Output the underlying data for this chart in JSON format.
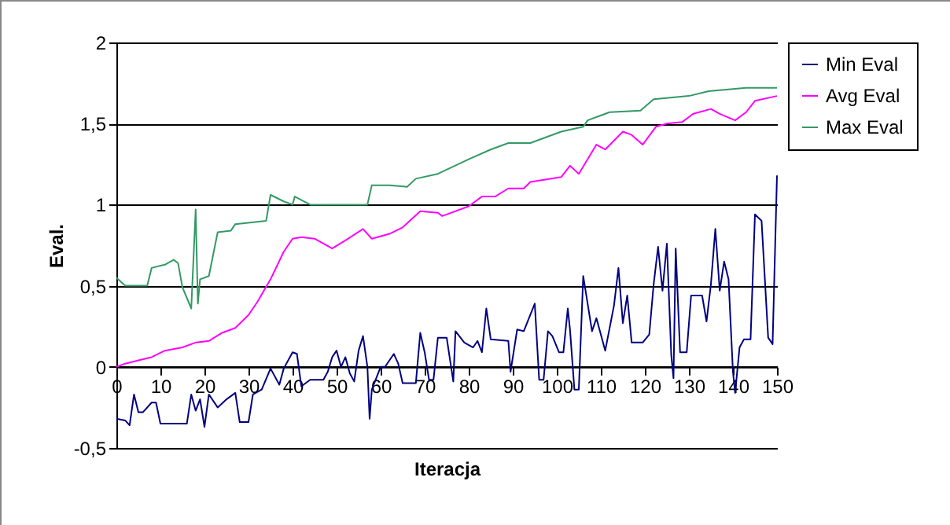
{
  "chart_data": {
    "type": "line",
    "xlabel": "Iteracja",
    "ylabel": "Eval.",
    "xlim": [
      0,
      150
    ],
    "xticks": [
      0,
      10,
      20,
      30,
      40,
      50,
      60,
      70,
      80,
      90,
      100,
      110,
      120,
      130,
      140,
      150
    ],
    "ylim": [
      -0.5,
      2
    ],
    "yticks": [
      {
        "value": -0.5,
        "label": "-0,5"
      },
      0,
      {
        "value": 0.5,
        "label": "0,5"
      },
      1,
      {
        "value": 1.5,
        "label": "1,5"
      },
      2
    ],
    "grid": "y",
    "legend": "right",
    "series": [
      {
        "name": "Min Eval",
        "color": "#000080",
        "x": [
          0,
          2,
          3,
          4,
          5,
          6,
          8,
          9,
          10,
          16,
          17,
          18,
          19,
          20,
          21,
          23,
          25,
          27,
          28,
          30,
          31,
          33,
          35,
          37,
          38,
          40,
          41,
          42,
          44,
          47,
          48,
          49,
          50,
          51,
          52,
          53,
          54,
          55,
          56,
          57,
          57.5,
          58,
          60,
          61,
          63,
          64,
          65,
          68,
          69,
          70,
          71,
          72,
          73,
          75,
          76,
          76.5,
          77,
          79,
          81,
          82,
          83,
          84,
          85,
          89,
          89.5,
          91,
          92.5,
          95,
          96,
          97,
          98,
          99,
          100.5,
          101.5,
          102.5,
          103,
          104,
          105,
          106,
          108,
          109,
          111,
          113,
          114,
          115,
          116,
          117,
          119.5,
          121,
          122,
          123,
          124,
          125,
          126,
          126.5,
          127,
          128,
          129.5,
          130.5,
          133,
          134,
          135,
          136,
          137,
          138,
          139,
          140,
          140.5,
          141.5,
          142.5,
          144,
          145,
          146.5,
          148,
          149,
          150
        ],
        "values": [
          -0.32,
          -0.33,
          -0.36,
          -0.17,
          -0.28,
          -0.28,
          -0.22,
          -0.22,
          -0.35,
          -0.35,
          -0.17,
          -0.27,
          -0.2,
          -0.37,
          -0.17,
          -0.25,
          -0.2,
          -0.16,
          -0.34,
          -0.34,
          -0.17,
          -0.14,
          -0.01,
          -0.11,
          -0.01,
          0.09,
          0.08,
          -0.12,
          -0.08,
          -0.08,
          -0.03,
          0.06,
          0.1,
          0,
          0.06,
          -0.04,
          -0.09,
          0.1,
          0.19,
          0,
          -0.32,
          -0.14,
          0,
          0,
          0.08,
          0.02,
          -0.1,
          -0.1,
          0.21,
          0.09,
          -0.08,
          -0.08,
          0.18,
          0.18,
          0,
          -0.09,
          0.22,
          0.15,
          0.12,
          0.16,
          0.09,
          0.36,
          0.17,
          0.16,
          -0.03,
          0.23,
          0.22,
          0.39,
          -0.08,
          -0.08,
          0.22,
          0.19,
          0.09,
          0.09,
          0.36,
          0.23,
          -0.14,
          -0.14,
          0.56,
          0.22,
          0.3,
          0.1,
          0.38,
          0.61,
          0.27,
          0.44,
          0.15,
          0.15,
          0.2,
          0.51,
          0.74,
          0.47,
          0.76,
          0.07,
          -0.07,
          0.73,
          0.09,
          0.09,
          0.44,
          0.44,
          0.28,
          0.51,
          0.85,
          0.47,
          0.65,
          0.54,
          -0.03,
          -0.16,
          0.12,
          0.17,
          0.17,
          0.94,
          0.9,
          0.18,
          0.14,
          1.18
        ]
      },
      {
        "name": "Avg Eval",
        "color": "#ff00ff",
        "x": [
          0,
          2,
          5,
          8,
          11,
          15,
          18,
          21,
          24,
          27,
          30,
          32,
          35,
          38,
          40,
          42,
          45,
          49,
          52,
          56,
          58,
          62,
          65,
          69,
          73,
          74,
          80,
          83,
          86,
          89,
          92.5,
          94,
          101,
          103,
          105,
          109,
          111,
          115,
          117,
          119.5,
          122.5,
          125,
          128.5,
          131,
          135,
          137,
          140.5,
          143,
          145,
          150
        ],
        "values": [
          0,
          0.02,
          0.04,
          0.06,
          0.1,
          0.12,
          0.15,
          0.16,
          0.21,
          0.24,
          0.32,
          0.4,
          0.54,
          0.71,
          0.79,
          0.8,
          0.79,
          0.73,
          0.78,
          0.85,
          0.79,
          0.82,
          0.86,
          0.96,
          0.95,
          0.93,
          0.99,
          1.05,
          1.05,
          1.1,
          1.1,
          1.14,
          1.17,
          1.24,
          1.19,
          1.37,
          1.34,
          1.45,
          1.43,
          1.37,
          1.48,
          1.5,
          1.51,
          1.56,
          1.59,
          1.56,
          1.52,
          1.57,
          1.64,
          1.67
        ]
      },
      {
        "name": "Max Eval",
        "color": "#339966",
        "x": [
          0,
          2,
          7,
          8,
          11,
          13,
          14,
          15,
          17,
          18,
          18.5,
          19,
          21,
          23,
          26,
          27,
          34,
          35,
          38,
          40,
          40.5,
          44,
          57,
          58,
          62,
          66,
          68,
          73,
          80,
          85,
          89,
          94,
          101,
          106,
          107,
          112,
          119,
          122,
          130,
          134.5,
          143,
          150
        ],
        "values": [
          0.55,
          0.5,
          0.5,
          0.61,
          0.63,
          0.66,
          0.64,
          0.49,
          0.36,
          0.97,
          0.39,
          0.54,
          0.56,
          0.83,
          0.84,
          0.88,
          0.9,
          1.06,
          1.02,
          1,
          1.05,
          1,
          1,
          1.12,
          1.12,
          1.11,
          1.16,
          1.19,
          1.28,
          1.34,
          1.38,
          1.38,
          1.45,
          1.48,
          1.52,
          1.57,
          1.58,
          1.65,
          1.67,
          1.7,
          1.72,
          1.72
        ]
      }
    ]
  }
}
